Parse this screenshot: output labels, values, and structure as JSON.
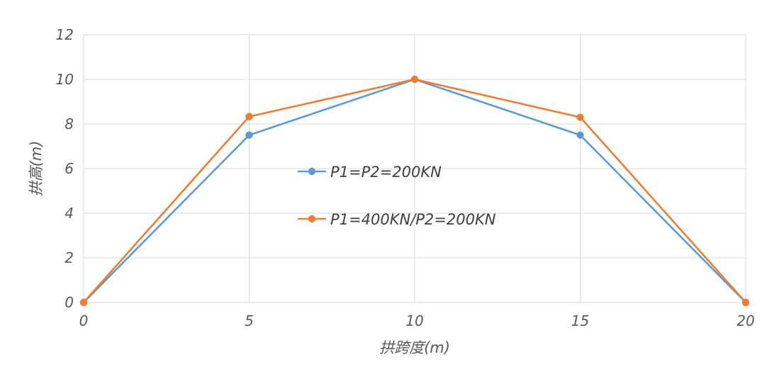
{
  "chart_data": {
    "type": "line",
    "title": "",
    "xlabel": "拱跨度(m)",
    "ylabel": "拱高(m)",
    "xlim": [
      0,
      20
    ],
    "ylim": [
      0,
      12
    ],
    "xticks": [
      0,
      5,
      10,
      15,
      20
    ],
    "yticks": [
      0,
      2,
      4,
      6,
      8,
      10,
      12
    ],
    "grid": true,
    "legend_position": "center",
    "series": [
      {
        "name": "P1=P2=200KN",
        "color": "#5b9bd5",
        "x": [
          0,
          5,
          10,
          15,
          20
        ],
        "y": [
          0,
          7.5,
          10,
          7.5,
          0
        ]
      },
      {
        "name": "P1=400KN/P2=200KN",
        "color": "#ed7d31",
        "x": [
          0,
          5,
          10,
          15,
          20
        ],
        "y": [
          0,
          8.33,
          10,
          8.3,
          0
        ]
      }
    ]
  }
}
